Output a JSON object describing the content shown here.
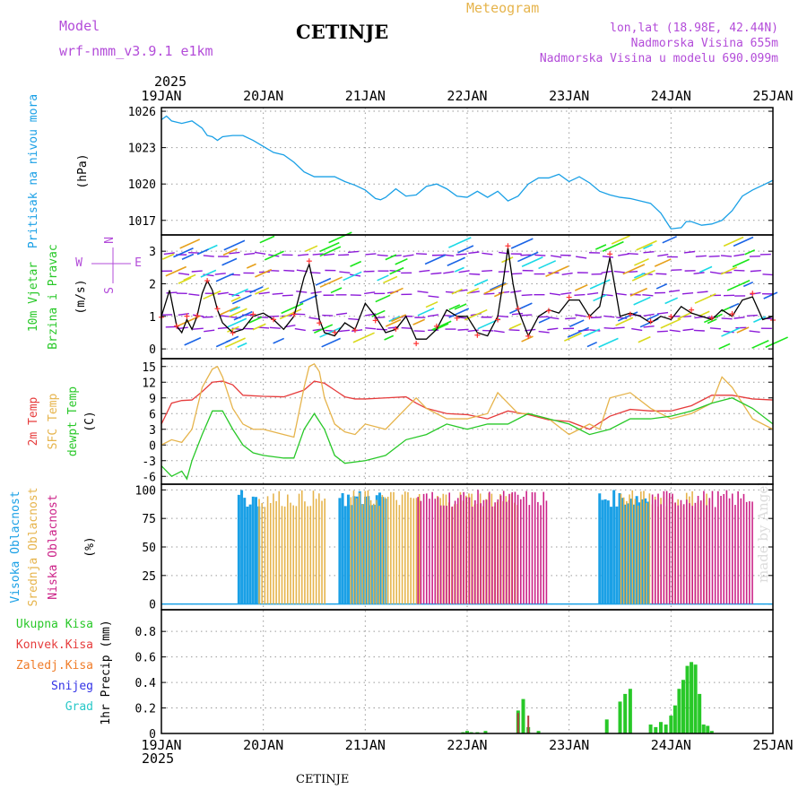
{
  "header": {
    "model_label": "Model",
    "model_name": "wrf-nmm_v3.9.1 e1km",
    "city": "CETINJE",
    "title": "Meteogram",
    "lonlat": "lon,lat (18.98E, 42.44N)",
    "altitude": "Nadmorska Visina 655m",
    "altitude_model": "Nadmorska Visina u modelu 690.099m",
    "year": "2025",
    "footer_city": "CETINJE",
    "watermark": "made by Angel"
  },
  "chart_data": [
    {
      "type": "line",
      "id": "pressure",
      "ylabel": "(hPa)",
      "side_label": "Pritisak na nivou mora",
      "ylim": [
        1015.8,
        1026.3
      ],
      "yticks": [
        1017,
        1020,
        1023,
        1026
      ],
      "x_range": [
        0,
        6
      ],
      "xlabels": [
        "19JAN",
        "20JAN",
        "21JAN",
        "22JAN",
        "23JAN",
        "24JAN",
        "25JAN"
      ],
      "color": "#1aa0e6",
      "x": [
        0,
        0.05,
        0.1,
        0.2,
        0.3,
        0.4,
        0.45,
        0.5,
        0.55,
        0.6,
        0.7,
        0.8,
        0.9,
        1.0,
        1.1,
        1.2,
        1.3,
        1.4,
        1.5,
        1.6,
        1.7,
        1.8,
        1.9,
        2.0,
        2.1,
        2.15,
        2.2,
        2.3,
        2.4,
        2.5,
        2.6,
        2.7,
        2.8,
        2.9,
        3.0,
        3.1,
        3.2,
        3.3,
        3.4,
        3.5,
        3.6,
        3.7,
        3.8,
        3.9,
        4.0,
        4.1,
        4.2,
        4.3,
        4.4,
        4.5,
        4.6,
        4.7,
        4.8,
        4.9,
        5.0,
        5.1,
        5.15,
        5.2,
        5.3,
        5.4,
        5.5,
        5.6,
        5.7,
        5.8,
        5.9,
        6.0
      ],
      "y": [
        1025.3,
        1025.6,
        1025.2,
        1025.0,
        1025.2,
        1024.6,
        1024.0,
        1023.9,
        1023.6,
        1023.9,
        1024.0,
        1024.0,
        1023.6,
        1023.1,
        1022.6,
        1022.4,
        1021.8,
        1021.0,
        1020.6,
        1020.6,
        1020.6,
        1020.2,
        1019.9,
        1019.5,
        1018.8,
        1018.7,
        1018.9,
        1019.6,
        1019.0,
        1019.1,
        1019.8,
        1020.0,
        1019.6,
        1019.0,
        1018.9,
        1019.4,
        1018.9,
        1019.4,
        1018.6,
        1019.0,
        1020.0,
        1020.5,
        1020.5,
        1020.8,
        1020.2,
        1020.6,
        1020.1,
        1019.4,
        1019.1,
        1018.9,
        1018.8,
        1018.6,
        1018.4,
        1017.6,
        1016.3,
        1016.4,
        1016.9,
        1016.9,
        1016.6,
        1016.7,
        1017.0,
        1017.8,
        1019.0,
        1019.5,
        1019.9,
        1020.3
      ]
    },
    {
      "type": "line",
      "id": "wind",
      "ylabel": "(m/s)",
      "side_label": [
        "10m Vjetar",
        "Brzina i Pravac"
      ],
      "compass": [
        "N",
        "E",
        "S",
        "W"
      ],
      "ylim": [
        -0.3,
        3.5
      ],
      "yticks": [
        0,
        1,
        2,
        3
      ],
      "x_range": [
        0,
        6
      ],
      "series": [
        {
          "color": "#000000",
          "x": [
            0,
            0.08,
            0.15,
            0.2,
            0.25,
            0.3,
            0.35,
            0.4,
            0.45,
            0.5,
            0.55,
            0.6,
            0.7,
            0.8,
            0.9,
            1.0,
            1.1,
            1.2,
            1.3,
            1.4,
            1.45,
            1.5,
            1.55,
            1.6,
            1.7,
            1.8,
            1.9,
            2.0,
            2.1,
            2.2,
            2.3,
            2.4,
            2.5,
            2.6,
            2.7,
            2.8,
            2.9,
            3.0,
            3.1,
            3.2,
            3.3,
            3.35,
            3.4,
            3.45,
            3.5,
            3.55,
            3.6,
            3.7,
            3.8,
            3.9,
            4.0,
            4.1,
            4.2,
            4.3,
            4.4,
            4.5,
            4.6,
            4.7,
            4.8,
            4.9,
            5.0,
            5.1,
            5.2,
            5.3,
            5.4,
            5.5,
            5.6,
            5.7,
            5.8,
            5.9,
            6.0
          ],
          "y": [
            1.0,
            1.8,
            0.7,
            0.5,
            0.9,
            0.6,
            1.0,
            1.7,
            2.1,
            1.8,
            1.2,
            0.8,
            0.5,
            0.6,
            1.0,
            1.1,
            0.9,
            0.6,
            1.0,
            2.2,
            2.6,
            1.9,
            0.9,
            0.5,
            0.4,
            0.8,
            0.6,
            1.4,
            1.0,
            0.5,
            0.6,
            1.0,
            0.3,
            0.3,
            0.6,
            1.2,
            1.0,
            1.0,
            0.5,
            0.4,
            1.0,
            2.0,
            3.1,
            2.0,
            1.2,
            0.8,
            0.4,
            1.0,
            1.2,
            1.1,
            1.5,
            1.5,
            1.0,
            1.3,
            2.8,
            1.0,
            1.1,
            1.0,
            0.8,
            1.0,
            0.9,
            1.3,
            1.1,
            1.0,
            0.9,
            1.2,
            1.0,
            1.5,
            1.6,
            0.9,
            1.0
          ]
        }
      ]
    },
    {
      "type": "line",
      "id": "temperature",
      "ylabel": "(C)",
      "side_labels": [
        "2m Temp",
        "SFC Temp",
        "dewpt Temp"
      ],
      "ylim": [
        -7.5,
        16.5
      ],
      "yticks": [
        -6,
        -3,
        0,
        3,
        6,
        9,
        12,
        15
      ],
      "x_range": [
        0,
        6
      ],
      "series": [
        {
          "name": "2m Temp",
          "color": "#e63c3c",
          "x": [
            0,
            0.1,
            0.2,
            0.3,
            0.4,
            0.5,
            0.6,
            0.7,
            0.8,
            1.0,
            1.2,
            1.4,
            1.5,
            1.6,
            1.7,
            1.8,
            1.9,
            2.0,
            2.2,
            2.4,
            2.5,
            2.6,
            2.8,
            3.0,
            3.2,
            3.4,
            3.6,
            3.8,
            4.0,
            4.2,
            4.4,
            4.6,
            4.8,
            5.0,
            5.2,
            5.4,
            5.6,
            5.8,
            6.0
          ],
          "y": [
            4,
            8,
            8.5,
            8.6,
            10.2,
            12.0,
            12.2,
            11.5,
            9.5,
            9.3,
            9.2,
            10.5,
            12.2,
            11.8,
            10.5,
            9.2,
            8.8,
            8.8,
            9.0,
            9.2,
            8.0,
            7.0,
            6.0,
            5.8,
            5.0,
            6.5,
            5.8,
            4.8,
            4.5,
            3.0,
            5.5,
            6.8,
            6.5,
            6.5,
            7.5,
            9.5,
            9.5,
            8.8,
            8.6
          ]
        },
        {
          "name": "SFC Temp",
          "color": "#e6b44c",
          "x": [
            0,
            0.1,
            0.2,
            0.3,
            0.4,
            0.5,
            0.55,
            0.6,
            0.7,
            0.8,
            0.9,
            1.0,
            1.2,
            1.3,
            1.4,
            1.45,
            1.5,
            1.55,
            1.6,
            1.7,
            1.8,
            1.9,
            2.0,
            2.2,
            2.4,
            2.5,
            2.6,
            2.8,
            3.0,
            3.2,
            3.3,
            3.4,
            3.5,
            3.6,
            3.8,
            4.0,
            4.1,
            4.2,
            4.3,
            4.4,
            4.6,
            4.8,
            5.0,
            5.2,
            5.4,
            5.5,
            5.6,
            5.8,
            6.0
          ],
          "y": [
            0,
            1,
            0.5,
            3,
            11,
            14.5,
            15,
            13,
            7,
            4,
            3,
            3,
            2,
            1.5,
            11,
            15,
            15.5,
            14,
            9,
            4,
            2.5,
            2,
            4,
            3,
            7,
            9,
            7,
            5,
            5,
            6,
            10,
            8,
            6,
            6,
            5,
            2,
            3,
            4,
            3,
            9,
            10,
            7,
            5,
            6,
            8,
            13,
            11,
            5,
            3
          ]
        },
        {
          "name": "dewpt Temp",
          "color": "#28c828",
          "x": [
            0,
            0.1,
            0.2,
            0.25,
            0.3,
            0.4,
            0.5,
            0.6,
            0.7,
            0.8,
            0.9,
            1.0,
            1.2,
            1.3,
            1.4,
            1.5,
            1.6,
            1.7,
            1.8,
            2.0,
            2.2,
            2.4,
            2.6,
            2.8,
            3.0,
            3.2,
            3.4,
            3.6,
            3.8,
            4.0,
            4.2,
            4.4,
            4.6,
            4.8,
            5.0,
            5.2,
            5.4,
            5.6,
            5.8,
            6.0
          ],
          "y": [
            -4,
            -6,
            -5,
            -6.5,
            -3,
            2,
            6.5,
            6.5,
            3,
            0,
            -1.5,
            -2,
            -2.5,
            -2.5,
            3,
            6,
            3,
            -2,
            -3.5,
            -3,
            -2,
            1,
            2,
            4,
            3,
            4,
            4,
            6,
            5,
            4,
            2,
            3,
            5,
            5,
            5.5,
            6.5,
            8,
            9,
            7,
            4
          ]
        }
      ]
    },
    {
      "type": "bar",
      "id": "clouds",
      "ylabel": "(%)",
      "side_labels": [
        "Visoka Oblacnost",
        "Srednja Oblacnost",
        "Niska Oblacnost"
      ],
      "ylim": [
        -5,
        105
      ],
      "yticks": [
        0,
        25,
        50,
        75,
        100
      ],
      "x_range": [
        0,
        6
      ],
      "series": [
        {
          "name": "Visoka Oblacnost",
          "color": "#1aa0e6",
          "blocks": [
            [
              0.76,
              0.96,
              100
            ],
            [
              1.75,
              2.2,
              100
            ],
            [
              4.3,
              4.8,
              100
            ]
          ]
        },
        {
          "name": "Srednja Oblacnost",
          "color": "#e6b44c",
          "blocks": [
            [
              0.95,
              1.62,
              100
            ],
            [
              1.85,
              2.55,
              100
            ],
            [
              2.7,
              3.5,
              100
            ],
            [
              4.5,
              5.4,
              100
            ]
          ]
        },
        {
          "name": "Niska Oblacnost",
          "color": "#cc2288",
          "blocks": [
            [
              2.5,
              3.8,
              100
            ],
            [
              4.8,
              5.8,
              100
            ]
          ]
        }
      ]
    },
    {
      "type": "bar",
      "id": "precip",
      "ylabel": "1hr Precip (mm)",
      "side_labels": [
        "Ukupna Kisa",
        "Konvek.Kisa",
        "Zaledj.Kisa",
        "Snijeg",
        "Grad"
      ],
      "side_colors": [
        "#28c828",
        "#e63c3c",
        "#f07c28",
        "#3232e6",
        "#28c8c8"
      ],
      "ylim": [
        0,
        0.97
      ],
      "yticks": [
        0,
        0.2,
        0.4,
        0.6,
        0.8
      ],
      "x_range": [
        0,
        6
      ],
      "series": [
        {
          "name": "Ukupna Kisa",
          "color": "#28c828",
          "x": [
            2.96,
            3.0,
            3.04,
            3.1,
            3.18,
            3.5,
            3.55,
            3.6,
            3.7,
            4.37,
            4.5,
            4.55,
            4.6,
            4.8,
            4.85,
            4.9,
            4.95,
            5.0,
            5.04,
            5.08,
            5.12,
            5.16,
            5.2,
            5.24,
            5.28,
            5.32,
            5.36,
            5.4
          ],
          "y": [
            0.01,
            0.02,
            0.01,
            0.01,
            0.02,
            0.18,
            0.27,
            0.05,
            0.02,
            0.11,
            0.25,
            0.31,
            0.35,
            0.07,
            0.05,
            0.09,
            0.07,
            0.14,
            0.22,
            0.35,
            0.42,
            0.53,
            0.56,
            0.54,
            0.31,
            0.07,
            0.06,
            0.02
          ]
        },
        {
          "name": "Konvek.Kisa",
          "color": "#b03c3c",
          "x": [
            3.5,
            3.6
          ],
          "y": [
            0.16,
            0.14
          ]
        }
      ]
    }
  ],
  "colors": {
    "barb_purple": "#8c1ad9",
    "barb_yellow": "#d9d91a",
    "barb_orange": "#e6a01a",
    "barb_green": "#1ae61a",
    "barb_cyan": "#1ad9e6",
    "barb_blue": "#1a64e6",
    "marker_red": "#ff3232"
  }
}
